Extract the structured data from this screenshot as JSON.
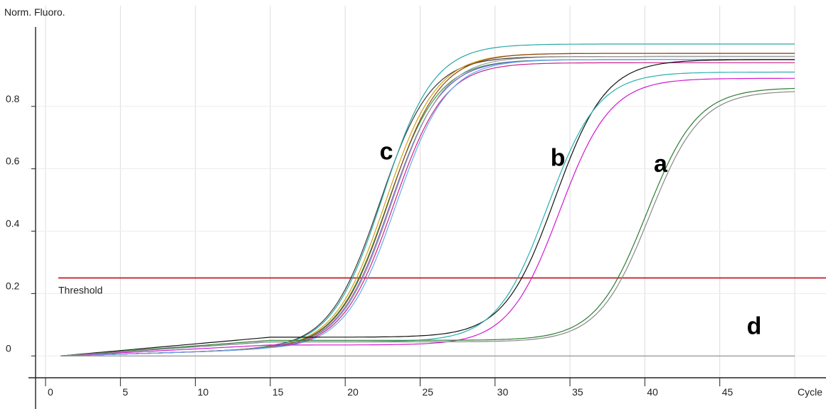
{
  "chart_data": {
    "type": "line",
    "title": "",
    "ylabel": "Norm. Fluoro.",
    "xlabel": "Cycle",
    "xlim": [
      0,
      50
    ],
    "ylim": [
      -0.07,
      1.05
    ],
    "x_ticks": [
      0,
      5,
      10,
      15,
      20,
      25,
      30,
      35,
      40,
      45
    ],
    "y_ticks": [
      0,
      0.2,
      0.4,
      0.6,
      0.8
    ],
    "y_tick_labels": [
      "0",
      "0.2",
      "0.4",
      "0.6",
      "0.8"
    ],
    "grid": "vertical",
    "threshold": {
      "label": "Threshold",
      "value": 0.25,
      "color": "#c0282f"
    },
    "group_labels": [
      {
        "text": "c",
        "x": 22.3,
        "y": 0.63
      },
      {
        "text": "b",
        "x": 33.7,
        "y": 0.61
      },
      {
        "text": "a",
        "x": 40.6,
        "y": 0.59
      },
      {
        "text": "d",
        "x": 46.8,
        "y": 0.07
      }
    ],
    "series": [
      {
        "group": "c",
        "color": "#3a3a3a",
        "start": 1,
        "mid": 22.3,
        "plateau": 0.96,
        "base": 0.02
      },
      {
        "group": "c",
        "color": "#2aa7a7",
        "start": 1,
        "mid": 22.5,
        "plateau": 1.0,
        "base": 0.02
      },
      {
        "group": "c",
        "color": "#d4a017",
        "start": 1,
        "mid": 22.7,
        "plateau": 0.97,
        "base": 0.02
      },
      {
        "group": "c",
        "color": "#2f9e44",
        "start": 1,
        "mid": 22.8,
        "plateau": 0.95,
        "base": 0.02
      },
      {
        "group": "c",
        "color": "#8b4513",
        "start": 1,
        "mid": 22.9,
        "plateau": 0.97,
        "base": 0.02
      },
      {
        "group": "c",
        "color": "#6a5acd",
        "start": 1,
        "mid": 23.0,
        "plateau": 0.95,
        "base": 0.02
      },
      {
        "group": "c",
        "color": "#a0a0a0",
        "start": 1,
        "mid": 23.1,
        "plateau": 0.96,
        "base": 0.02
      },
      {
        "group": "c",
        "color": "#cc2288",
        "start": 1,
        "mid": 23.2,
        "plateau": 0.94,
        "base": 0.02
      },
      {
        "group": "c",
        "color": "#66aaee",
        "start": 1,
        "mid": 23.4,
        "plateau": 0.95,
        "base": 0.02
      },
      {
        "group": "b",
        "color": "#111111",
        "start": 1,
        "mid": 34.0,
        "plateau": 0.95,
        "base": 0.06
      },
      {
        "group": "b",
        "color": "#2ab0b0",
        "start": 1,
        "mid": 33.5,
        "plateau": 0.91,
        "base": 0.045
      },
      {
        "group": "b",
        "color": "#d01ad0",
        "start": 1,
        "mid": 34.3,
        "plateau": 0.89,
        "base": 0.035
      },
      {
        "group": "a",
        "color": "#2e7d32",
        "start": 1,
        "mid": 40.1,
        "plateau": 0.86,
        "base": 0.05
      },
      {
        "group": "a",
        "color": "#888888",
        "start": 1,
        "mid": 40.3,
        "plateau": 0.85,
        "base": 0.045
      },
      {
        "group": "d",
        "color": "#8a8a8a",
        "start": 1,
        "mid": null,
        "plateau": 0.0,
        "base": 0.0
      }
    ]
  }
}
